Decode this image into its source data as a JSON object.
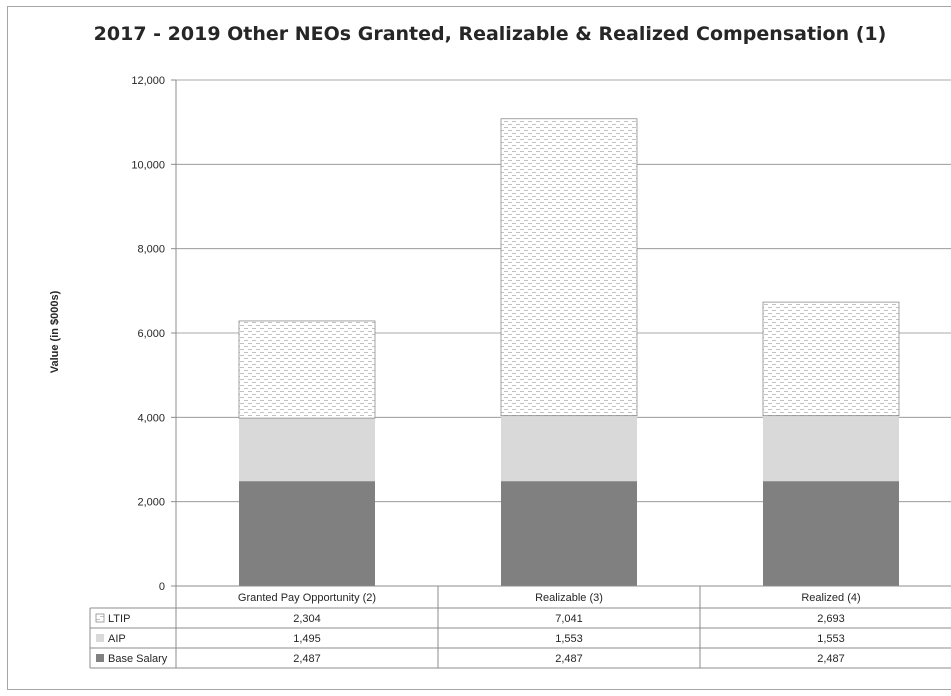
{
  "chart_data": {
    "type": "bar",
    "stacked": true,
    "title": "2017 - 2019 Other NEOs Granted, Realizable & Realized Compensation  (1)",
    "ylabel": "Value  (in $000s)",
    "ylim": [
      0,
      12000
    ],
    "yticks": [
      "0",
      "2,000",
      "4,000",
      "6,000",
      "8,000",
      "10,000",
      "12,000"
    ],
    "ytick_values": [
      0,
      2000,
      4000,
      6000,
      8000,
      10000,
      12000
    ],
    "grid": true,
    "categories": [
      "Granted Pay Opportunity (2)",
      "Realizable (3)",
      "Realized (4)"
    ],
    "series": [
      {
        "name": "Base Salary",
        "color": "#808080",
        "pattern": "solid",
        "values": [
          2487,
          2487,
          2487
        ],
        "labels": [
          "2,487",
          "2,487",
          "2,487"
        ]
      },
      {
        "name": "AIP",
        "color": "#d9d9d9",
        "pattern": "solid",
        "values": [
          1495,
          1553,
          1553
        ],
        "labels": [
          "1,495",
          "1,553",
          "1,553"
        ]
      },
      {
        "name": "LTIP",
        "color": "#ffffff",
        "pattern": "dashed-hatch",
        "values": [
          2304,
          7041,
          2693
        ],
        "labels": [
          "2,304",
          "7,041",
          "2,693"
        ]
      }
    ],
    "data_table": true
  }
}
